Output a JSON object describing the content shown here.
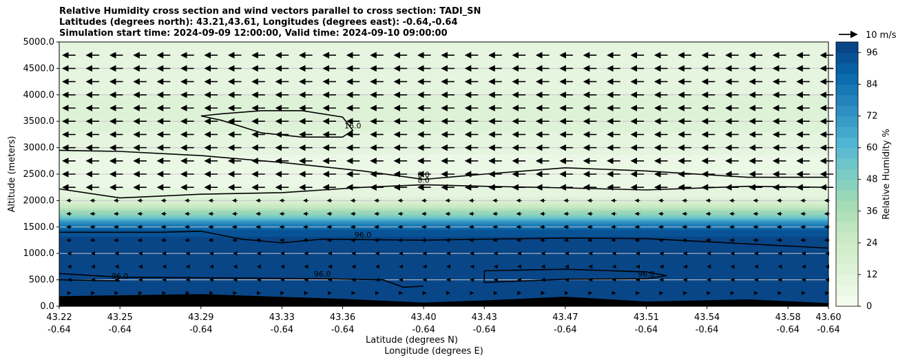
{
  "title_lines": [
    "Relative Humidity cross section and wind vectors parallel to cross section: TADI_SN",
    "Latitudes (degrees north): 43.21,43.61, Longitudes (degrees east): -0.64,-0.64",
    "Simulation start time: 2024-09-09 12:00:00, Valid time: 2024-09-10 09:00:00"
  ],
  "chart_data": {
    "type": "heatmap",
    "xlabel": "Latitude (degrees N)",
    "xlabel2": "Longitude (degrees E)",
    "ylabel": "Altitude (meters)",
    "ylim": [
      0,
      5000
    ],
    "xlim": [
      43.22,
      43.6
    ],
    "y_ticks": [
      "0.0",
      "500.0",
      "1000.0",
      "1500.0",
      "2000.0",
      "2500.0",
      "3000.0",
      "3500.0",
      "4000.0",
      "4500.0",
      "5000.0"
    ],
    "x_ticks": [
      {
        "lat": "43.22",
        "lon": "-0.64"
      },
      {
        "lat": "43.25",
        "lon": "-0.64"
      },
      {
        "lat": "43.29",
        "lon": "-0.64"
      },
      {
        "lat": "43.33",
        "lon": "-0.64"
      },
      {
        "lat": "43.36",
        "lon": "-0.64"
      },
      {
        "lat": "43.40",
        "lon": "-0.64"
      },
      {
        "lat": "43.43",
        "lon": "-0.64"
      },
      {
        "lat": "43.47",
        "lon": "-0.64"
      },
      {
        "lat": "43.51",
        "lon": "-0.64"
      },
      {
        "lat": "43.54",
        "lon": "-0.64"
      },
      {
        "lat": "43.58",
        "lon": "-0.64"
      },
      {
        "lat": "43.60",
        "lon": "-0.64"
      }
    ],
    "colorbar": {
      "label": "Relative Humidity %",
      "range": [
        0,
        100
      ],
      "ticks": [
        "0",
        "12",
        "24",
        "36",
        "48",
        "60",
        "72",
        "84",
        "96"
      ],
      "colormap": "GnBu"
    },
    "humidity_profile": [
      {
        "altitude": 0,
        "rh": 97
      },
      {
        "altitude": 1300,
        "rh": 97
      },
      {
        "altitude": 1450,
        "rh": 92
      },
      {
        "altitude": 1550,
        "rh": 80
      },
      {
        "altitude": 1650,
        "rh": 62
      },
      {
        "altitude": 1750,
        "rh": 45
      },
      {
        "altitude": 1850,
        "rh": 32
      },
      {
        "altitude": 1950,
        "rh": 20
      },
      {
        "altitude": 2100,
        "rh": 11
      },
      {
        "altitude": 2300,
        "rh": 7
      },
      {
        "altitude": 2600,
        "rh": 6
      },
      {
        "altitude": 3000,
        "rh": 9
      },
      {
        "altitude": 3500,
        "rh": 14
      },
      {
        "altitude": 4000,
        "rh": 12
      },
      {
        "altitude": 4500,
        "rh": 11
      },
      {
        "altitude": 5000,
        "rh": 10
      }
    ],
    "contours": [
      {
        "label": "8.0",
        "lat": [
          43.22,
          43.25,
          43.29,
          43.33,
          43.37,
          43.4,
          43.43,
          43.47,
          43.51,
          43.56,
          43.6
        ],
        "altitude": [
          2950,
          2930,
          2850,
          2720,
          2560,
          2400,
          2500,
          2620,
          2560,
          2440,
          2440
        ]
      },
      {
        "label": "8.0",
        "lat": [
          43.22,
          43.25,
          43.29,
          43.33,
          43.37,
          43.4,
          43.43,
          43.47,
          43.51,
          43.56,
          43.6
        ],
        "altitude": [
          2220,
          2050,
          2120,
          2150,
          2250,
          2300,
          2270,
          2240,
          2200,
          2270,
          2250
        ]
      },
      {
        "label": "16.0",
        "lat": [
          43.29,
          43.3,
          43.32,
          43.34,
          43.36,
          43.365,
          43.36,
          43.34,
          43.32,
          43.3,
          43.29
        ],
        "altitude": [
          3600,
          3520,
          3280,
          3200,
          3200,
          3330,
          3580,
          3700,
          3700,
          3640,
          3600
        ]
      },
      {
        "label": "96.0",
        "lat": [
          43.22,
          43.27,
          43.29,
          43.31,
          43.33,
          43.35,
          43.37,
          43.4,
          43.43,
          43.47,
          43.51,
          43.55,
          43.6
        ],
        "altitude": [
          1400,
          1400,
          1420,
          1270,
          1200,
          1270,
          1260,
          1250,
          1270,
          1290,
          1280,
          1200,
          1100
        ]
      },
      {
        "label": "96.0",
        "lat": [
          43.22,
          43.25,
          43.29,
          43.32,
          43.35,
          43.38,
          43.39,
          43.4
        ],
        "altitude": [
          620,
          550,
          540,
          530,
          520,
          500,
          360,
          380
        ]
      },
      {
        "label": "96.0",
        "lat": [
          43.43,
          43.47,
          43.51,
          43.52,
          43.51,
          43.47,
          43.43,
          43.43
        ],
        "altitude": [
          670,
          700,
          650,
          580,
          520,
          510,
          450,
          670
        ]
      },
      {
        "label": "96.0",
        "lat": [
          43.22,
          43.25
        ],
        "altitude": [
          500,
          480
        ]
      }
    ],
    "wind_reference": "10 m/s",
    "terrain_altitude": [
      {
        "lat": 43.22,
        "altitude": 190
      },
      {
        "lat": 43.29,
        "altitude": 230
      },
      {
        "lat": 43.36,
        "altitude": 140
      },
      {
        "lat": 43.4,
        "altitude": 70
      },
      {
        "lat": 43.43,
        "altitude": 110
      },
      {
        "lat": 43.47,
        "altitude": 180
      },
      {
        "lat": 43.51,
        "altitude": 90
      },
      {
        "lat": 43.56,
        "altitude": 130
      },
      {
        "lat": 43.6,
        "altitude": 60
      }
    ]
  }
}
